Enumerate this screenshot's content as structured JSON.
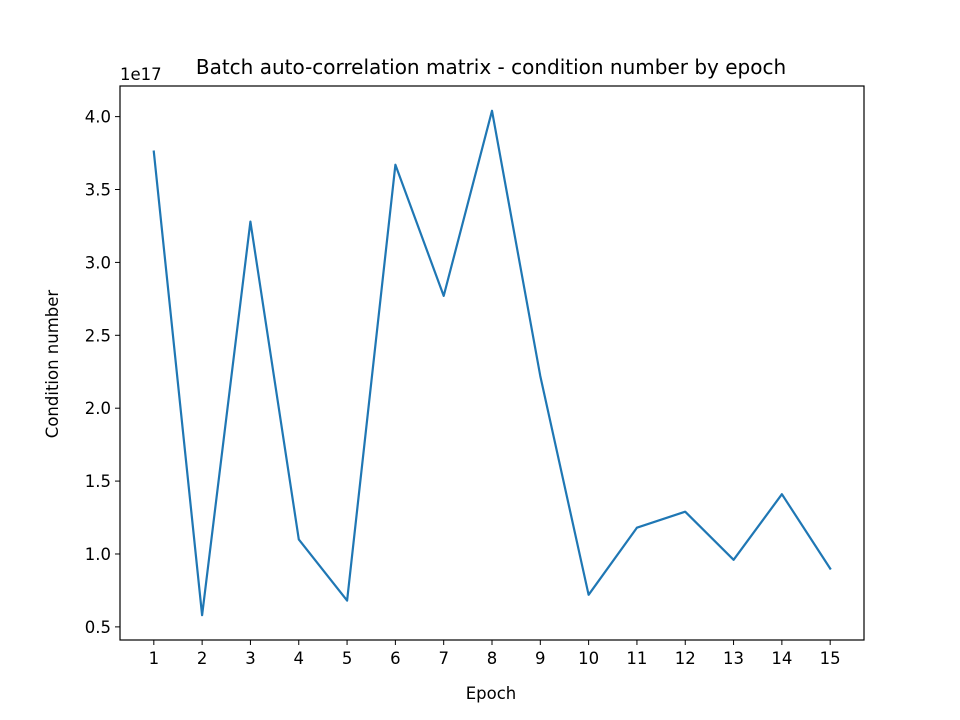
{
  "chart_data": {
    "type": "line",
    "title": "Batch auto-correlation matrix - condition number by epoch",
    "xlabel": "Epoch",
    "ylabel": "Condition number",
    "y_offset_label": "1e17",
    "x": [
      1,
      2,
      3,
      4,
      5,
      6,
      7,
      8,
      9,
      10,
      11,
      12,
      13,
      14,
      15
    ],
    "x_tick_labels": [
      "1",
      "2",
      "3",
      "4",
      "5",
      "6",
      "7",
      "8",
      "9",
      "10",
      "11",
      "12",
      "13",
      "14",
      "15"
    ],
    "y_ticks": [
      0.5,
      1.0,
      1.5,
      2.0,
      2.5,
      3.0,
      3.5,
      4.0
    ],
    "y_tick_labels": [
      "0.5",
      "1.0",
      "1.5",
      "2.0",
      "2.5",
      "3.0",
      "3.5",
      "4.0"
    ],
    "series": [
      {
        "values": [
          3.76,
          0.58,
          3.28,
          1.1,
          0.68,
          3.67,
          2.77,
          4.04,
          2.22,
          0.72,
          1.18,
          1.29,
          0.96,
          1.41,
          0.9
        ],
        "color": "#1f77b4"
      }
    ],
    "xlim": [
      0.3,
      15.7
    ],
    "ylim": [
      0.41,
      4.21
    ],
    "grid": false,
    "legend": "none"
  }
}
